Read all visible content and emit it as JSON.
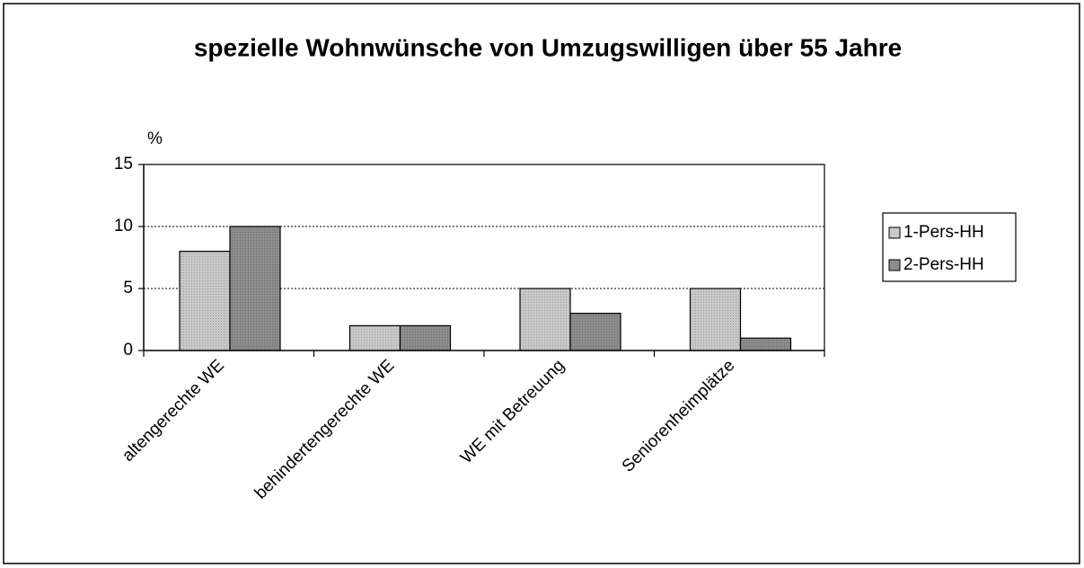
{
  "chart_data": {
    "type": "bar",
    "title": "spezielle Wohnwünsche von Umzugswilligen über 55 Jahre",
    "y_label": "%",
    "categories": [
      "altengerechte WE",
      "behindertengerechte WE",
      "WE mit Betreuung",
      "Seniorenheimplätze"
    ],
    "series": [
      {
        "name": "1-Pers-HH",
        "color": "#c8c8c8",
        "values": [
          8,
          2,
          5,
          5
        ]
      },
      {
        "name": "2-Pers-HH",
        "color": "#8c8c8c",
        "values": [
          10,
          2,
          3,
          1
        ]
      }
    ],
    "ylim": [
      0,
      15
    ],
    "yticks": [
      0,
      5,
      10,
      15
    ],
    "grid": true,
    "legend": "right"
  }
}
